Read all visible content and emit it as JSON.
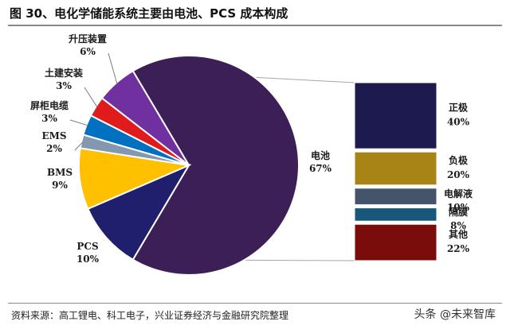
{
  "title": "图 30、电化学储能系统主要由电池、PCS 成本构成",
  "source": "资料来源：高工锂电、科工电子，兴业证券经济与金融研究院整理",
  "watermark": "头条 @未来智库",
  "chart_data": [
    {
      "type": "pie",
      "slices": [
        {
          "name": "电池",
          "value": 67,
          "value_label": "67%",
          "color": "#3d1f57"
        },
        {
          "name": "PCS",
          "value": 10,
          "value_label": "10%",
          "color": "#1f1f6e"
        },
        {
          "name": "BMS",
          "value": 9,
          "value_label": "9%",
          "color": "#ffc000"
        },
        {
          "name": "EMS",
          "value": 2,
          "value_label": "2%",
          "color": "#8497b0"
        },
        {
          "name": "屏柜电缆",
          "value": 3,
          "value_label": "3%",
          "color": "#0070c0"
        },
        {
          "name": "土建安装",
          "value": 3,
          "value_label": "3%",
          "color": "#e01b1b"
        },
        {
          "name": "升压装置",
          "value": 6,
          "value_label": "6%",
          "color": "#7030a0"
        }
      ]
    },
    {
      "type": "bar",
      "stacked": true,
      "categories": [
        "正极",
        "负极",
        "电解液",
        "隔膜",
        "其他"
      ],
      "values": [
        40,
        20,
        10,
        8,
        22
      ],
      "value_labels": [
        "40%",
        "20%",
        "10%",
        "8%",
        "22%"
      ],
      "colors": [
        "#1c1a4e",
        "#a88417",
        "#44546a",
        "#17587a",
        "#7a0c0c"
      ]
    }
  ]
}
